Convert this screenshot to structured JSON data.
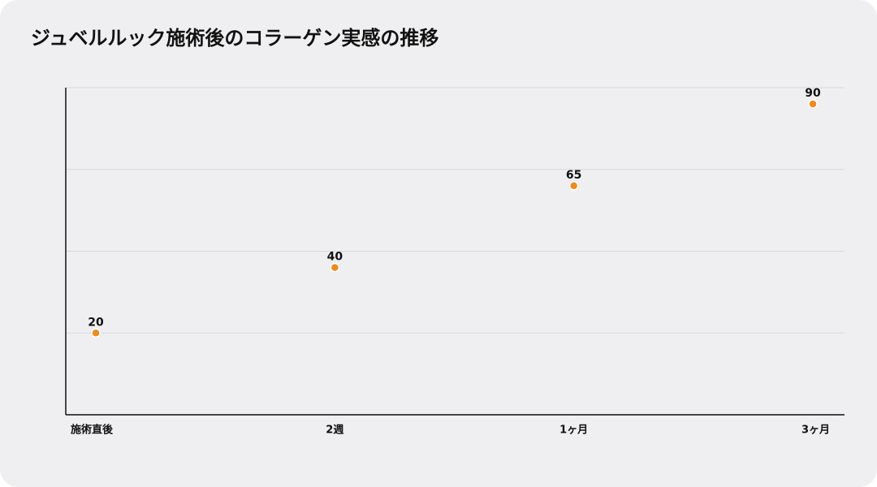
{
  "chart_data": {
    "type": "line",
    "title": "ジュベルルック施術後のコラーゲン実感の推移",
    "categories": [
      "施術直後",
      "2週",
      "1ヶ月",
      "3ヶ月"
    ],
    "series": [
      {
        "name": "コラーゲン実感",
        "color": "#f28a1a",
        "values": [
          20,
          40,
          65,
          90
        ]
      }
    ],
    "ylim": [
      -5,
      95
    ],
    "yticks": [
      20,
      45,
      70,
      95
    ],
    "grid": true
  }
}
